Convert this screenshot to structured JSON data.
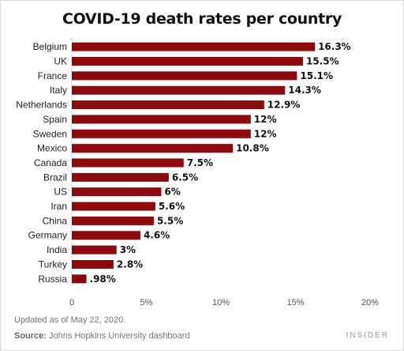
{
  "chart_data": {
    "type": "bar",
    "orientation": "horizontal",
    "title": "COVID-19 death rates per country",
    "categories": [
      "Belgium",
      "UK",
      "France",
      "Italy",
      "Netherlands",
      "Spain",
      "Sweden",
      "Mexico",
      "Canada",
      "Brazil",
      "US",
      "Iran",
      "China",
      "Germany",
      "India",
      "Turkey",
      "Russia"
    ],
    "values": [
      16.3,
      15.5,
      15.1,
      14.3,
      12.9,
      12,
      12,
      10.8,
      7.5,
      6.5,
      6,
      5.6,
      5.5,
      4.6,
      3,
      2.8,
      0.98
    ],
    "value_labels": [
      "16.3%",
      "15.5%",
      "15.1%",
      "14.3%",
      "12.9%",
      "12%",
      "12%",
      "10.8%",
      "7.5%",
      "6.5%",
      "6%",
      "5.6%",
      "5.5%",
      "4.6%",
      "3%",
      "2.8%",
      ".98%"
    ],
    "xlim": [
      0,
      20
    ],
    "x_ticks": [
      0,
      5,
      10,
      15,
      20
    ],
    "x_tick_labels": [
      "0",
      "5%",
      "10%",
      "15%",
      "20%"
    ],
    "bar_color": "#8b0a0e",
    "grid": false
  },
  "footer": {
    "updated": "Updated as of May 22, 2020.",
    "source_label": "Source:",
    "source_text": "Johns Hopkins University dashboard",
    "brand": "INSIDER"
  }
}
